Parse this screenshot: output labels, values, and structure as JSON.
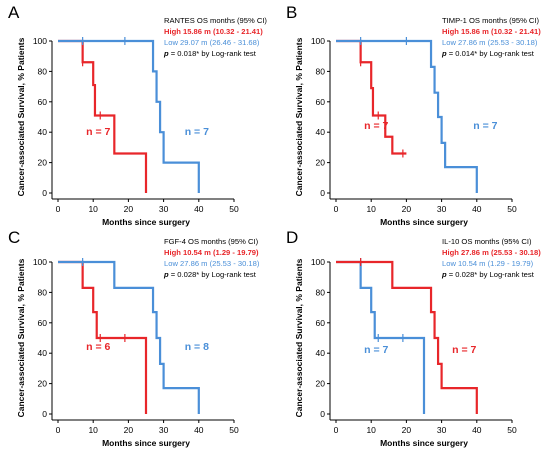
{
  "ylabel": "Cancer-associated Survival, % Patients",
  "colors": {
    "red": "#e8262a",
    "blue": "#4a8fd8",
    "axis": "#000000"
  },
  "chart_data": [
    {
      "panel": "A",
      "type": "line",
      "xlabel": "Months since surgery",
      "xlim": [
        0,
        50
      ],
      "ylim": [
        0,
        100
      ],
      "xticks": [
        "0",
        "10",
        "20",
        "30",
        "40",
        "50"
      ],
      "yticks": [
        "0",
        "20",
        "40",
        "60",
        "80",
        "100"
      ],
      "stats": {
        "header": "RANTES   OS months (95% CI)",
        "red": "High  15.86 m (10.32 - 21.41)",
        "blue": "Low  29.07 m (26.46 - 31.68)",
        "p_prefix": "p",
        "p_value": " = 0.018* by Log-rank test"
      },
      "series": [
        {
          "color": "red",
          "n_label": "n = 7",
          "steps": [
            [
              0,
              100
            ],
            [
              7,
              86
            ],
            [
              10,
              71
            ],
            [
              10.5,
              51
            ],
            [
              16,
              26
            ],
            [
              25,
              0
            ]
          ],
          "end_x": 25,
          "censors": [
            [
              7,
              86
            ],
            [
              12,
              51
            ]
          ]
        },
        {
          "color": "blue",
          "n_label": "n = 7",
          "steps": [
            [
              0,
              100
            ],
            [
              27,
              80
            ],
            [
              28,
              60
            ],
            [
              29,
              40
            ],
            [
              30,
              20
            ],
            [
              40,
              0
            ]
          ],
          "end_x": 40,
          "censors": [
            [
              7,
              100
            ],
            [
              19,
              100
            ]
          ]
        }
      ]
    },
    {
      "panel": "B",
      "type": "line",
      "xlabel": "Months since surgery",
      "xlim": [
        0,
        50
      ],
      "ylim": [
        0,
        100
      ],
      "xticks": [
        "0",
        "10",
        "20",
        "30",
        "40",
        "50"
      ],
      "yticks": [
        "0",
        "20",
        "40",
        "60",
        "80",
        "100"
      ],
      "stats": {
        "header": "TIMP-1   OS months (95% CI)",
        "red": "High  15.86 m (10.32 - 21.41)",
        "blue": "Low  27.86 m (25.53 - 30.18)",
        "p_prefix": "p",
        "p_value": " = 0.014* by Log-rank test"
      },
      "series": [
        {
          "color": "red",
          "n_label": "n = 7",
          "steps": [
            [
              0,
              100
            ],
            [
              7,
              86
            ],
            [
              10,
              69
            ],
            [
              10.5,
              51
            ],
            [
              14,
              37
            ],
            [
              16,
              26
            ]
          ],
          "end_x": 20,
          "censors": [
            [
              7,
              86
            ],
            [
              12,
              51
            ],
            [
              19,
              26
            ]
          ]
        },
        {
          "color": "blue",
          "n_label": "n = 7",
          "steps": [
            [
              0,
              100
            ],
            [
              27,
              83
            ],
            [
              28,
              66
            ],
            [
              29,
              50
            ],
            [
              30,
              33
            ],
            [
              31,
              17
            ],
            [
              40,
              0
            ]
          ],
          "end_x": 40,
          "censors": [
            [
              7,
              100
            ],
            [
              20,
              100
            ]
          ]
        }
      ]
    },
    {
      "panel": "C",
      "type": "line",
      "xlabel": "Months since surgery",
      "xlim": [
        0,
        50
      ],
      "ylim": [
        0,
        100
      ],
      "xticks": [
        "0",
        "10",
        "20",
        "30",
        "40",
        "50"
      ],
      "yticks": [
        "0",
        "20",
        "40",
        "60",
        "80",
        "100"
      ],
      "stats": {
        "header": "FGF-4   OS months (95% CI)",
        "red": "High  10.54 m (1.29 - 19.79)",
        "blue": "Low  27.86 m (25.53 - 30.18)",
        "p_prefix": "p",
        "p_value": " = 0.028* by Log-rank test"
      },
      "series": [
        {
          "color": "red",
          "n_label": "n = 6",
          "steps": [
            [
              0,
              100
            ],
            [
              7,
              83
            ],
            [
              10,
              67
            ],
            [
              11,
              50
            ],
            [
              25,
              0
            ]
          ],
          "end_x": 25,
          "censors": [
            [
              12,
              50
            ],
            [
              19,
              50
            ]
          ]
        },
        {
          "color": "blue",
          "n_label": "n = 8",
          "steps": [
            [
              0,
              100
            ],
            [
              16,
              83
            ],
            [
              27,
              67
            ],
            [
              28,
              50
            ],
            [
              29,
              33
            ],
            [
              30,
              17
            ],
            [
              40,
              0
            ]
          ],
          "end_x": 40,
          "censors": [
            [
              7,
              100
            ]
          ]
        }
      ]
    },
    {
      "panel": "D",
      "type": "line",
      "xlabel": "Months since surgery",
      "xlim": [
        0,
        50
      ],
      "ylim": [
        0,
        100
      ],
      "xticks": [
        "0",
        "10",
        "20",
        "30",
        "40",
        "50"
      ],
      "yticks": [
        "0",
        "20",
        "40",
        "60",
        "80",
        "100"
      ],
      "stats": {
        "header": "IL-10   OS months (95% CI)",
        "red": "High  27.86 m (25.53 - 30.18)",
        "blue": "Low  10.54 m (1.29 - 19.79)",
        "p_prefix": "p",
        "p_value": " = 0.028* by Log-rank test"
      },
      "series": [
        {
          "color": "blue",
          "n_label": "n = 7",
          "steps": [
            [
              0,
              100
            ],
            [
              7,
              83
            ],
            [
              10,
              67
            ],
            [
              11,
              50
            ],
            [
              25,
              0
            ]
          ],
          "end_x": 25,
          "censors": [
            [
              7,
              100
            ],
            [
              12,
              50
            ],
            [
              19,
              50
            ]
          ]
        },
        {
          "color": "red",
          "n_label": "n = 7",
          "steps": [
            [
              0,
              100
            ],
            [
              16,
              83
            ],
            [
              27,
              67
            ],
            [
              28,
              50
            ],
            [
              29,
              33
            ],
            [
              30,
              17
            ],
            [
              40,
              0
            ]
          ],
          "end_x": 40,
          "censors": [
            [
              7,
              100
            ]
          ]
        }
      ]
    }
  ]
}
